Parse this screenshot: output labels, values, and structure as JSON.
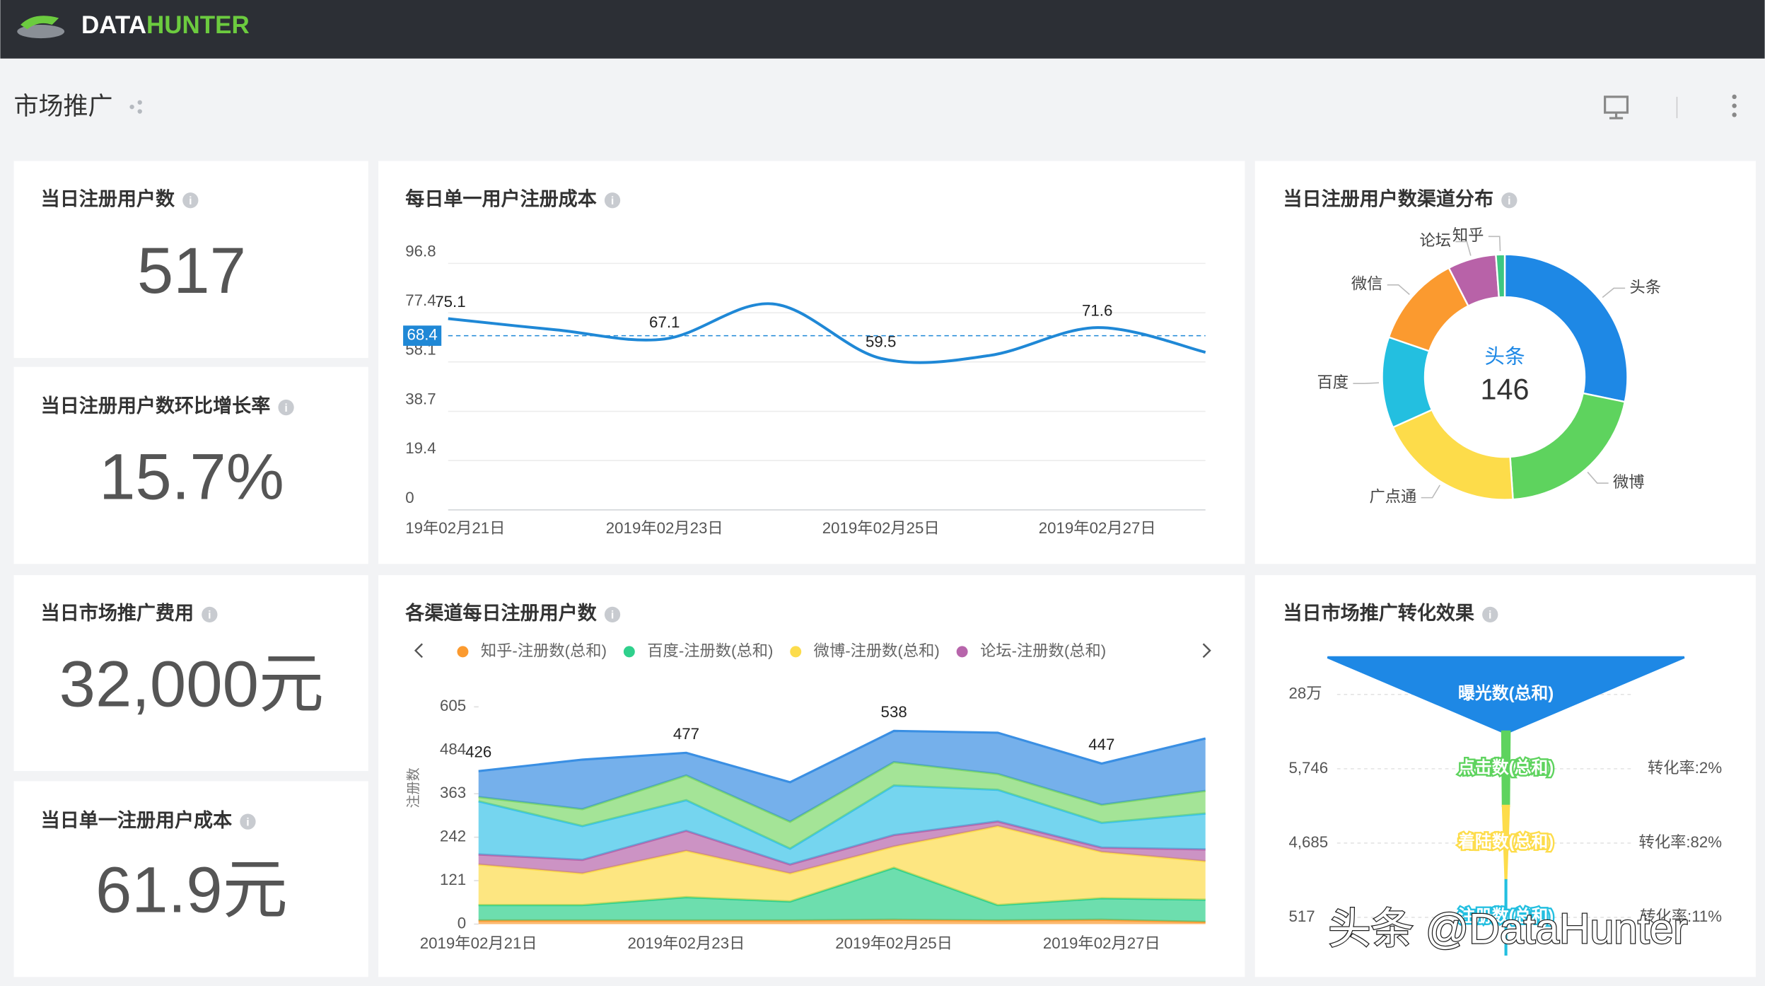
{
  "header": {
    "brand_prefix": "DATA",
    "brand_suffix": "HUNTER"
  },
  "page_title": "市场推广",
  "kpis": [
    {
      "title": "当日注册用户数",
      "value": "517"
    },
    {
      "title": "当日注册用户数环比增长率",
      "value": "15.7%"
    },
    {
      "title": "当日市场推广费用",
      "value": "32,000元"
    },
    {
      "title": "当日单一注册用户成本",
      "value": "61.9元"
    }
  ],
  "chart_data": [
    {
      "type": "line",
      "title": "每日单一用户注册成本",
      "categories": [
        "19年02月21日",
        null,
        "2019年02月23日",
        null,
        "2019年02月25日",
        null,
        "2019年02月27日",
        null
      ],
      "values": [
        75.1,
        70.7,
        67.1,
        80.9,
        59.5,
        60.6,
        71.6,
        61.9
      ],
      "value_labels": [
        "75.1",
        null,
        "67.1",
        null,
        "59.5",
        null,
        "71.6",
        null
      ],
      "color": "#1f88d6",
      "ylim": [
        0,
        96.8
      ],
      "yticks": [
        0,
        19.4,
        38.7,
        58.1,
        77.4,
        96.8
      ],
      "grid": true,
      "mark_line": {
        "value": 68.4,
        "color": "#1f88d6"
      }
    },
    {
      "type": "donut",
      "title": "当日注册用户数渠道分布",
      "categories": [
        "头条",
        "微博",
        "广点通",
        "百度",
        "微信",
        "论坛",
        "知乎"
      ],
      "values": [
        146,
        107,
        100,
        62,
        63,
        33,
        6
      ],
      "colors": [
        "#1e88e5",
        "#5ed35e",
        "#fddc4a",
        "#23bfe0",
        "#fb9a2f",
        "#b862a8",
        "#3dc781"
      ]
    },
    {
      "type": "stacked_area",
      "title": "各渠道每日注册用户数",
      "y_label": "注册数",
      "categories": [
        "2019年02月21日",
        null,
        "2019年02月23日",
        null,
        "2019年02月25日",
        null,
        "2019年02月27日",
        null
      ],
      "ylim": [
        0,
        605
      ],
      "yticks": [
        0,
        121,
        242,
        363,
        484,
        605
      ],
      "series": [
        {
          "name": "知乎-注册数(总和)",
          "color": "#fb9a2f",
          "values": [
            10,
            10,
            10,
            10,
            12,
            10,
            12,
            6
          ]
        },
        {
          "name": "百度-注册数(总和)",
          "color": "#2fd08c",
          "values": [
            43,
            43,
            65,
            53,
            145,
            43,
            60,
            62
          ]
        },
        {
          "name": "微博-注册数(总和)",
          "color": "#fcdc4c",
          "values": [
            113,
            88,
            129,
            78,
            59,
            220,
            129,
            107
          ]
        },
        {
          "name": "论坛-注册数(总和)",
          "color": "#b765ab",
          "values": [
            28,
            38,
            56,
            25,
            32,
            13,
            12,
            33
          ]
        },
        {
          "name": null,
          "color": "#3ac3e8",
          "values": [
            148,
            94,
            85,
            44,
            138,
            88,
            69,
            100
          ]
        },
        {
          "name": null,
          "color": "#7ed86b",
          "values": [
            12,
            47,
            69,
            75,
            65,
            44,
            50,
            63
          ]
        },
        {
          "name": null,
          "color": "#3a8fe3",
          "values": [
            72,
            138,
            63,
            110,
            87,
            115,
            115,
            146
          ]
        }
      ],
      "total_labels": [
        "426",
        null,
        "477",
        null,
        "538",
        null,
        "447",
        null
      ]
    },
    {
      "type": "funnel",
      "title": "当日市场推广转化效果",
      "categories": [
        "曝光数(总和)",
        "点击数(总和)",
        "着陆数(总和)",
        "注册数(总和)"
      ],
      "values": [
        280000,
        5746,
        4685,
        517
      ],
      "value_labels": [
        "28万",
        "5,746",
        "4,685",
        "517"
      ],
      "rates": [
        {
          "value": 2,
          "label": "转化率:2%"
        },
        {
          "value": 82,
          "label": "转化率:82%"
        },
        {
          "value": 11,
          "label": "转化率:11%"
        }
      ],
      "colors": [
        "#1e88e5",
        "#5ed35e",
        "#fddc4a",
        "#23bfe0"
      ]
    }
  ],
  "watermark": "头条 @DataHunter"
}
